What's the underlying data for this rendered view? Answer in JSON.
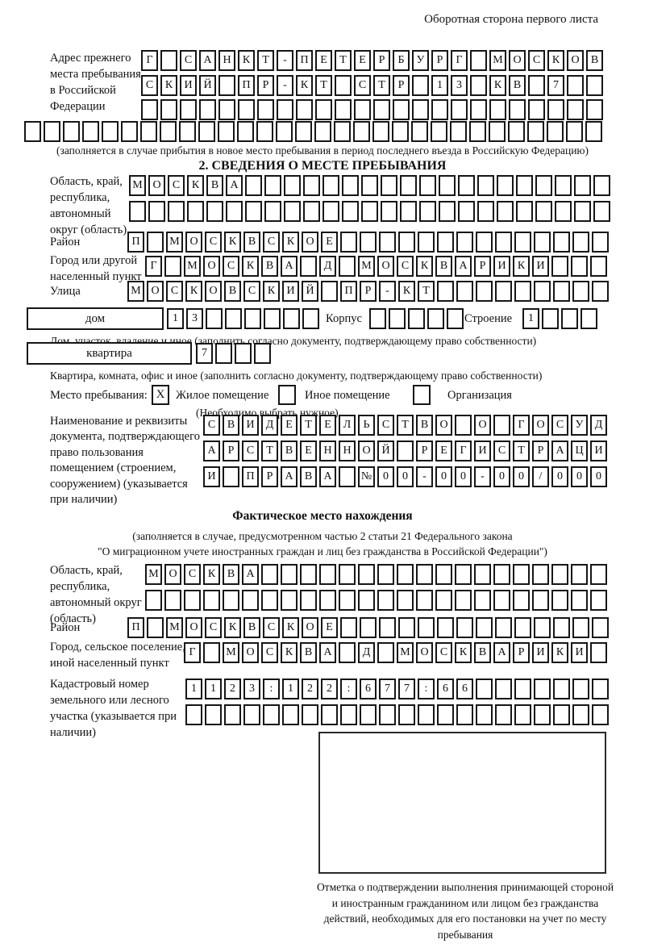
{
  "page": {
    "header_note": "Оборотная сторона первого листа"
  },
  "prev_address": {
    "label": "Адрес прежнего места пребывания в Российской Федерации",
    "rows": [
      "Г САНКТ-ПЕТЕРБУРГ МОСКОВ",
      "СКИЙ ПР-КТ СТР 13 КВ 7  ",
      "                        "
    ],
    "full_row": "                              ",
    "note": "(заполняется в случае прибытия в новое место пребывания в период последнего въезда в Российскую Федерацию)"
  },
  "section2": {
    "title": "2. СВЕДЕНИЯ О МЕСТЕ ПРЕБЫВАНИЯ",
    "oblast": {
      "label": "Область, край, республика, автономный округ (область)",
      "rows": [
        "МОСКВА                   ",
        "                         "
      ]
    },
    "raion": {
      "label": "Район",
      "cells": "П МОСКВСКОЕ              "
    },
    "gorod": {
      "label": "Город или другой населенный пункт",
      "cells": "Г МОСКВА Д МОСКВАРИКИ   "
    },
    "ulitsa": {
      "label": "Улица",
      "cells": "МОСКОВСКИЙ ПР-КТ         "
    },
    "dom": {
      "box_label": "дом",
      "cells": "13      ",
      "korpus_label": "Корпус",
      "korpus_cells": "     ",
      "stroenie_label": "Строение",
      "stroenie_cells": "1   "
    },
    "dom_note": "Дом, участок, владение и иное (заполнить согласно документу, подтверждающему право собственности)",
    "kvartira": {
      "box_label": "квартира",
      "cells": "7   "
    },
    "kvartira_note": "Квартира, комната, офис и иное (заполнить согласно документу, подтверждающему право собственности)",
    "mesto": {
      "label": "Место пребывания:",
      "options": [
        {
          "label": "Жилое помещение",
          "checked": "X"
        },
        {
          "label": "Иное помещение",
          "checked": ""
        },
        {
          "label": "Организация",
          "checked": ""
        }
      ],
      "note": "(Необходимо выбрать нужное)"
    },
    "doc": {
      "label": "Наименование и реквизиты документа, подтверждающего право пользования помещением (строением, сооружением) (указывается при наличии)",
      "rows": [
        "СВИДЕТЕЛЬСТВО О ГОСУД",
        "АРСТВЕННОЙ РЕГИСТРАЦИ",
        "И ПРАВА №00-00-00/000"
      ]
    }
  },
  "fact": {
    "title": "Фактическое место нахождения",
    "note_line1": "(заполняется в случае, предусмотренном частью 2 статьи 21 Федерального закона",
    "note_line2": "\"О миграционном учете иностранных граждан и лиц без гражданства в Российской Федерации\")",
    "oblast": {
      "label": "Область, край, республика, автономный округ (область)",
      "rows": [
        "МОСКВА                  ",
        "                        "
      ]
    },
    "raion": {
      "label": "Район",
      "cells": "П МОСКВСКОЕ              "
    },
    "gorod": {
      "label": "Город, сельское поселение, иной населенный пункт",
      "cells": "Г МОСКВА Д МОСКВАРИКИ "
    },
    "kadastr": {
      "label": "Кадастровый номер земельного или лесного участка (указывается при наличии)",
      "rows": [
        "1123:122:677:66       ",
        "                      "
      ]
    },
    "stamp_note": "Отметка о подтверждении выполнения принимающей стороной и иностранным гражданином или лицом без гражданства действий, необходимых для его постановки на учет по месту пребывания"
  }
}
